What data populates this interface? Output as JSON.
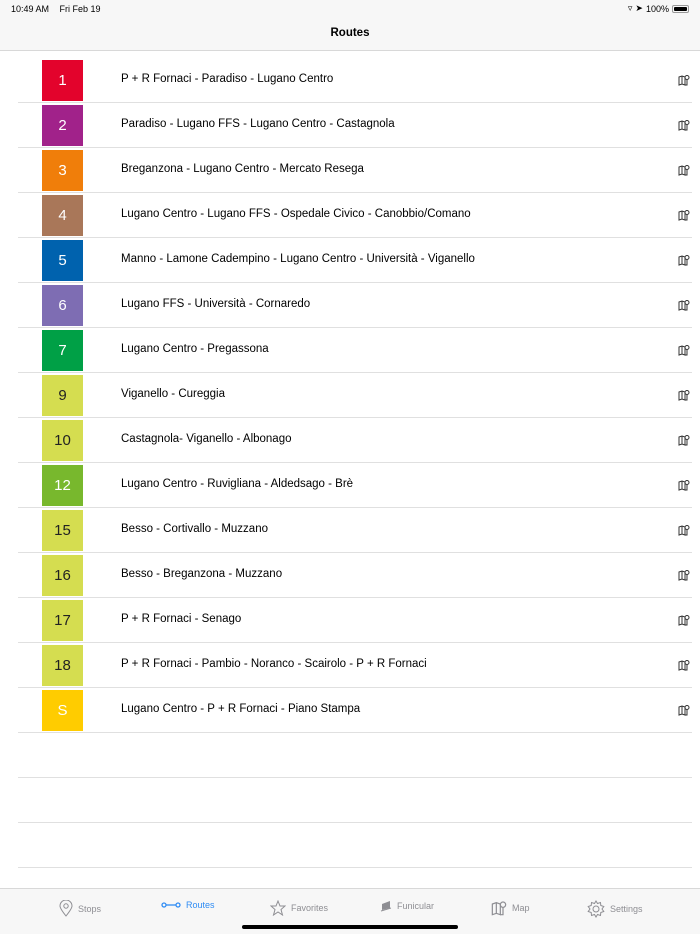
{
  "status": {
    "time": "10:49 AM",
    "date": "Fri Feb 19",
    "battery": "100%"
  },
  "header": {
    "title": "Routes"
  },
  "routes": [
    {
      "number": "1",
      "name": "P + R Fornaci - Paradiso - Lugano Centro",
      "color": "#e3032c",
      "dark": false
    },
    {
      "number": "2",
      "name": "Paradiso - Lugano FFS - Lugano Centro - Castagnola",
      "color": "#a1228a",
      "dark": false
    },
    {
      "number": "3",
      "name": "Breganzona - Lugano Centro - Mercato Resega",
      "color": "#f07e0a",
      "dark": false
    },
    {
      "number": "4",
      "name": "Lugano Centro - Lugano FFS - Ospedale Civico - Canobbio/Comano",
      "color": "#a97759",
      "dark": false
    },
    {
      "number": "5",
      "name": "Manno - Lamone Cadempino - Lugano Centro - Università - Viganello",
      "color": "#0062ae",
      "dark": false
    },
    {
      "number": "6",
      "name": "Lugano FFS - Università - Cornaredo",
      "color": "#7e6db3",
      "dark": false
    },
    {
      "number": "7",
      "name": "Lugano Centro - Pregassona",
      "color": "#00a046",
      "dark": false
    },
    {
      "number": "9",
      "name": "Viganello - Cureggia",
      "color": "#d5dd50",
      "dark": true
    },
    {
      "number": "10",
      "name": "Castagnola- Viganello - Albonago",
      "color": "#d5dd50",
      "dark": true
    },
    {
      "number": "12",
      "name": "Lugano Centro - Ruvigliana - Aldedsago - Brè",
      "color": "#78b82d",
      "dark": false
    },
    {
      "number": "15",
      "name": "Besso - Cortivallo - Muzzano",
      "color": "#d5dd50",
      "dark": true
    },
    {
      "number": "16",
      "name": "Besso - Breganzona - Muzzano",
      "color": "#d5dd50",
      "dark": true
    },
    {
      "number": "17",
      "name": "P + R Fornaci - Senago",
      "color": "#d5dd50",
      "dark": true
    },
    {
      "number": "18",
      "name": "P + R Fornaci - Pambio - Noranco - Scairolo - P + R Fornaci",
      "color": "#d5dd50",
      "dark": true
    },
    {
      "number": "S",
      "name": "Lugano Centro - P + R Fornaci - Piano Stampa",
      "color": "#ffcc00",
      "dark": false
    }
  ],
  "tabs": [
    {
      "label": "Stops",
      "icon": "map-pin-icon"
    },
    {
      "label": "Routes",
      "icon": "route-icon",
      "active": true
    },
    {
      "label": "Favorites",
      "icon": "star-icon"
    },
    {
      "label": "Funicular",
      "icon": "funicular-icon"
    },
    {
      "label": "Map",
      "icon": "map-icon"
    },
    {
      "label": "Settings",
      "icon": "gear-icon"
    }
  ],
  "colors": {
    "accent": "#2f8cf4",
    "inactive": "#8e8e93"
  }
}
